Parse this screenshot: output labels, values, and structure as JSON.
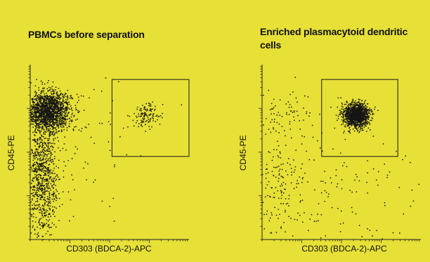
{
  "chart_data": [
    {
      "type": "scatter",
      "title": "PBMCs before separation",
      "xlabel": "CD303 (BDCA-2)-APC",
      "ylabel": "CD45-PE",
      "scale": "log",
      "xlim": [
        0,
        4
      ],
      "ylim": [
        0,
        4
      ],
      "gate": {
        "x": [
          2.06,
          4.0
        ],
        "y": [
          1.9,
          3.66
        ]
      },
      "populations": [
        {
          "name": "",
          "cx": 0.45,
          "cy": 2.95,
          "sx": 0.28,
          "sy": 0.22,
          "n": 1600
        },
        {
          "name": "",
          "cx": 0.28,
          "cy": 1.45,
          "sx": 0.22,
          "sy": 0.75,
          "n": 900
        },
        {
          "name": "",
          "cx": 2.9,
          "cy": 2.85,
          "sx": 0.17,
          "sy": 0.14,
          "n": 120
        },
        {
          "name": "",
          "cx": 1.2,
          "cy": 2.3,
          "sx": 0.9,
          "sy": 0.9,
          "n": 90
        }
      ]
    },
    {
      "type": "scatter",
      "title": "Enriched plasmacytoid dendritic cells",
      "xlabel": "CD303 (BDCA-2)-APC",
      "ylabel": "CD45-PE",
      "scale": "log",
      "xlim": [
        0,
        4
      ],
      "ylim": [
        0,
        4
      ],
      "gate": {
        "x": [
          1.5,
          3.42
        ],
        "y": [
          1.9,
          3.66
        ]
      },
      "populations": [
        {
          "name": "",
          "cx": 2.35,
          "cy": 2.85,
          "sx": 0.17,
          "sy": 0.14,
          "n": 1300
        },
        {
          "name": "",
          "cx": 0.55,
          "cy": 2.9,
          "sx": 0.35,
          "sy": 0.25,
          "n": 70
        },
        {
          "name": "",
          "cx": 0.45,
          "cy": 1.3,
          "sx": 0.35,
          "sy": 0.65,
          "n": 150
        },
        {
          "name": "",
          "cx": 2.0,
          "cy": 1.2,
          "sx": 1.2,
          "sy": 0.8,
          "n": 140
        }
      ]
    }
  ]
}
